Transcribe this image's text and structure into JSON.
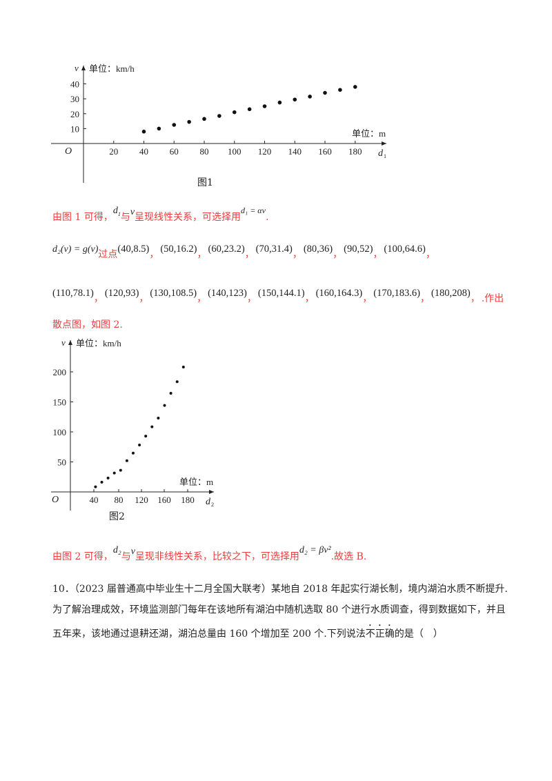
{
  "chart_data": [
    {
      "type": "scatter",
      "ylabel": "v",
      "y_unit": "单位：km/h",
      "xlabel": "d",
      "xlabel_sub": "1",
      "x_unit": "单位：m",
      "origin": "O",
      "caption": "图1",
      "x_ticks": [
        "20",
        "40",
        "60",
        "80",
        "100",
        "120",
        "140",
        "160",
        "180"
      ],
      "y_ticks": [
        "10",
        "20",
        "30",
        "40"
      ],
      "x": [
        40,
        50,
        60,
        70,
        80,
        90,
        100,
        110,
        120,
        130,
        140,
        150,
        160,
        170,
        180
      ],
      "y": [
        8,
        10,
        12.5,
        14.5,
        16.5,
        18.5,
        21,
        23,
        25,
        27.5,
        29.5,
        31.5,
        34,
        36,
        38
      ],
      "xlim": [
        0,
        190
      ],
      "ylim": [
        0,
        45
      ]
    },
    {
      "type": "scatter",
      "ylabel": "v",
      "y_unit": "单位：km/h",
      "xlabel": "d",
      "xlabel_sub": "2",
      "x_unit": "单位：m",
      "origin": "O",
      "caption": "图2",
      "x_ticks": [
        "40",
        "80",
        "120",
        "160",
        "180"
      ],
      "y_ticks": [
        "50",
        "100",
        "150",
        "200"
      ],
      "x": [
        40,
        50,
        60,
        70,
        80,
        90,
        100,
        110,
        120,
        130,
        140,
        150,
        160,
        170,
        180
      ],
      "y": [
        8.5,
        16.2,
        23.2,
        31.4,
        36,
        52,
        64.6,
        78.1,
        93,
        108.5,
        123,
        144.1,
        164.3,
        183.6,
        208
      ],
      "ylim": [
        0,
        215
      ]
    }
  ],
  "text": {
    "line1_a": "由图 1 可得，",
    "line1_d1": "d",
    "line1_sub": "1",
    "line1_yu": "与",
    "line1_v": "v",
    "line1_b": "呈现线性关系，可选择用",
    "line1_formula": "d₁ = αv",
    "line1_end": ".",
    "line2_lhs": "d₂(v) = g(v)",
    "line2_guo": "过点",
    "points_row1": [
      "(40,8.5)",
      "(50,16.2)",
      "(60,23.2)",
      "(70,31.4)",
      "(80,36)",
      "(90,52)",
      "(100,64.6)"
    ],
    "points_row2": [
      "(110,78.1)",
      "(120,93)",
      "(130,108.5)",
      "(140,123)",
      "(150,144.1)",
      "(160,164.3)",
      "(170,183.6)",
      "(180,208)"
    ],
    "zuochu": ".作出",
    "line3": "散点图，如图 2.",
    "line4_a": "由图 2 可得，",
    "line4_d2": "d₂",
    "line4_yu": "与",
    "line4_v": "v",
    "line4_b": "呈现非线性关系，比较之下，可选择用",
    "line4_formula": "d₂ = βv²",
    "line4_end": ".故选 B.",
    "q10_line1": "10．（2023 届普通高中毕业生十二月全国大联考）某地自 2018 年起实行湖长制，境内湖泊水质不断提升.",
    "q10_line2": "为了解治理成效，环境监测部门每年在该地所有湖泊中随机选取 80 个进行水质调查，得到数据如下，并且",
    "q10_line3_a": "五年来，该地通过退耕还湖，湖泊总量由 160 个增加至 200 个.下列说法",
    "q10_line3_emph": "不正确",
    "q10_line3_b": "的是（　）"
  }
}
